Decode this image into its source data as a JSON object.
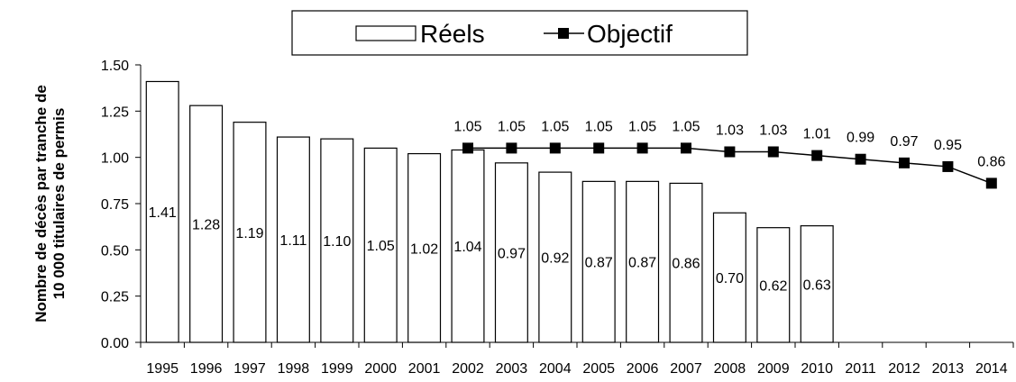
{
  "chart_data": {
    "type": "bar",
    "ylabel_lines": [
      "Nombre de décès par tranche de",
      "10 000 titulaires de permis"
    ],
    "ylim": [
      0,
      1.5
    ],
    "yticks": [
      "0.00",
      "0.25",
      "0.50",
      "0.75",
      "1.00",
      "1.25",
      "1.50"
    ],
    "legend_position": "top-center",
    "categories": [
      "1995",
      "1996",
      "1997",
      "1998",
      "1999",
      "2000",
      "2001",
      "2002",
      "2003",
      "2004",
      "2005",
      "2006",
      "2007",
      "2008",
      "2009",
      "2010",
      "2011",
      "2012",
      "2013",
      "2014"
    ],
    "series": [
      {
        "name": "Réels",
        "type": "bar",
        "values": [
          1.41,
          1.28,
          1.19,
          1.11,
          1.1,
          1.05,
          1.02,
          1.04,
          0.97,
          0.92,
          0.87,
          0.87,
          0.86,
          0.7,
          0.62,
          0.63,
          null,
          null,
          null,
          null
        ],
        "labels": [
          "1.41",
          "1.28",
          "1.19",
          "1.11",
          "1.10",
          "1.05",
          "1.02",
          "1.04",
          "0.97",
          "0.92",
          "0.87",
          "0.87",
          "0.86",
          "0.70",
          "0.62",
          "0.63",
          null,
          null,
          null,
          null
        ]
      },
      {
        "name": "Objectif",
        "type": "line",
        "values": [
          null,
          null,
          null,
          null,
          null,
          null,
          null,
          1.05,
          1.05,
          1.05,
          1.05,
          1.05,
          1.05,
          1.03,
          1.03,
          1.01,
          0.99,
          0.97,
          0.95,
          0.86
        ],
        "labels": [
          null,
          null,
          null,
          null,
          null,
          null,
          null,
          "1.05",
          "1.05",
          "1.05",
          "1.05",
          "1.05",
          "1.05",
          "1.03",
          "1.03",
          "1.01",
          "0.99",
          "0.97",
          "0.95",
          "0.86"
        ]
      }
    ],
    "colors": {
      "bar_fill": "#ffffff",
      "stroke": "#000000",
      "marker": "#000000"
    },
    "grid": false
  }
}
